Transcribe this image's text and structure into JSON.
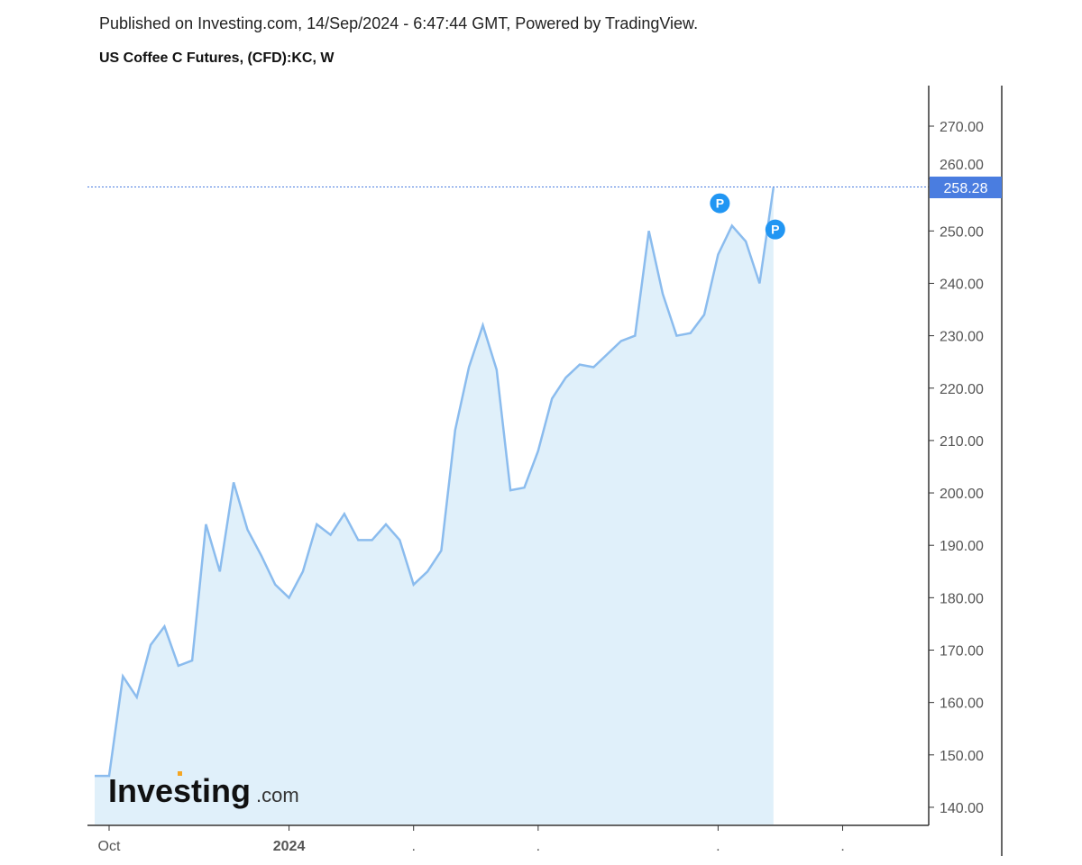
{
  "header": {
    "published": "Published on Investing.com, 14/Sep/2024 - 6:47:44 GMT, Powered by TradingView.",
    "title": "US Coffee C Futures, (CFD):KC, W"
  },
  "logo": {
    "text": "Investing",
    "suffix": ".com"
  },
  "colors": {
    "line": "#8bbcee",
    "fill": "#e0f0fa",
    "last_label": "#4a7de0",
    "marker": "#2196f3",
    "axis": "#333"
  },
  "chart_data": {
    "type": "area",
    "title": "US Coffee C Futures, (CFD):KC, W",
    "xlabel": "",
    "ylabel": "",
    "ylim": [
      135,
      279
    ],
    "y_ticks": [
      "140.00",
      "150.00",
      "160.00",
      "170.00",
      "180.00",
      "190.00",
      "200.00",
      "210.00",
      "220.00",
      "230.00",
      "240.00",
      "250.00",
      "260.00",
      "270.00"
    ],
    "x_tick_labels": [
      {
        "label": "Oct",
        "index": 0
      },
      {
        "label": "2024",
        "index": 13
      },
      {
        "label": "",
        "index": 22
      },
      {
        "label": "",
        "index": 31
      },
      {
        "label": "",
        "index": 44
      },
      {
        "label": "",
        "index": 53
      }
    ],
    "values": [
      146,
      165,
      161,
      171,
      174.5,
      167,
      168,
      194,
      185,
      202,
      193,
      188,
      182.5,
      180,
      185,
      194,
      192,
      196,
      191,
      191,
      194,
      191,
      182.5,
      185,
      189,
      212,
      224,
      232,
      223.5,
      200.5,
      201,
      208,
      218,
      222,
      224.5,
      224,
      226.5,
      229,
      230,
      250,
      238,
      230,
      230.5,
      234,
      245.5,
      251,
      248,
      240,
      258.28
    ],
    "start_value": 146,
    "last_value": "258.28",
    "markers": [
      {
        "label": "P",
        "index": 44,
        "value": 257
      },
      {
        "label": "P",
        "index": 48,
        "value": 252
      }
    ],
    "grid": false,
    "legend": "none"
  }
}
